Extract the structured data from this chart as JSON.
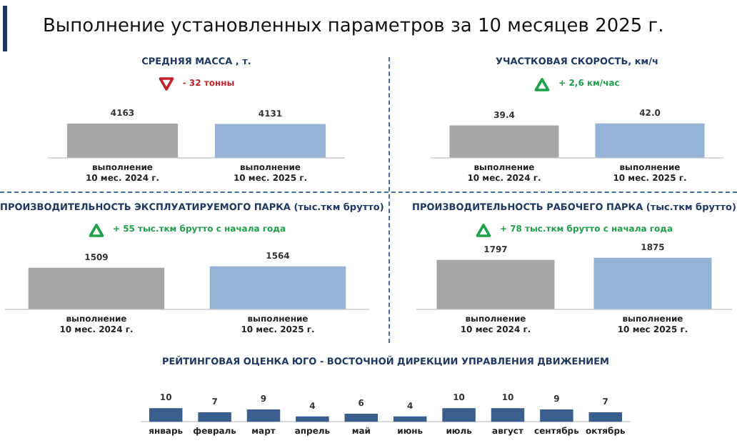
{
  "chart_data": [
    {
      "type": "other",
      "title": "Выполнение установленных параметров за 10 месяцев 2025 г."
    },
    {
      "type": "bar",
      "title": "СРЕДНЯЯ МАССА , т.",
      "annotations": [
        "- 32 тонны"
      ],
      "categories": [
        "выполнение\n10 мес. 2024 г.",
        "выполнение\n10 мес. 2025 г."
      ],
      "values": [
        4163,
        4131
      ],
      "colors": [
        "#a6a6a6",
        "#95b3d7"
      ],
      "data_labels": true
    },
    {
      "type": "bar",
      "title": "УЧАСТКОВАЯ СКОРОСТЬ, км/ч",
      "annotations": [
        "+ 2,6 км/час"
      ],
      "categories": [
        "выполнение\n10 мес. 2024 г.",
        "выполнение\n10 мес. 2025 г."
      ],
      "values": [
        39.4,
        42.0
      ],
      "colors": [
        "#a6a6a6",
        "#95b3d7"
      ],
      "value_labels": [
        "39.4",
        "42.0"
      ]
    },
    {
      "type": "bar",
      "title": "ПРОИЗВОДИТЕЛЬНОСТЬ  ЭКСПЛУАТИРУЕМОГО ПАРКА (тыс.ткм брутто)",
      "annotations": [
        "+ 55 тыс.ткм брутто  с начала года"
      ],
      "categories": [
        "выполнение\n10 мес. 2024 г.",
        "выполнение\n10 мес. 2025 г."
      ],
      "values": [
        1509,
        1564
      ],
      "colors": [
        "#a6a6a6",
        "#95b3d7"
      ],
      "data_labels": true
    },
    {
      "type": "bar",
      "title": "ПРОИЗВОДИТЕЛЬНОСТЬ  РАБОЧЕГО ПАРКА (тыс.ткм брутто)",
      "annotations": [
        "+ 78 тыс.ткм брутто  с начала года"
      ],
      "categories": [
        "выполнение\n10 мес 2024 г.",
        "выполнение\n10 мес 2025 г."
      ],
      "values": [
        1797,
        1875
      ],
      "colors": [
        "#a6a6a6",
        "#95b3d7"
      ],
      "data_labels": true
    },
    {
      "type": "bar",
      "title": "РЕЙТИНГОВАЯ ОЦЕНКА ЮГО - ВОСТОЧНОЙ ДИРЕКЦИИ УПРАВЛЕНИЯ ДВИЖЕНИЕМ",
      "categories": [
        "январь",
        "февраль",
        "март",
        "апрель",
        "май",
        "июнь",
        "июль",
        "август",
        "сентябрь",
        "октябрь"
      ],
      "values": [
        10,
        7,
        9,
        4,
        6,
        4,
        10,
        10,
        9,
        7
      ],
      "colors": [
        "#3a5f8f",
        "#3a5f8f",
        "#3a5f8f",
        "#3a5f8f",
        "#3a5f8f",
        "#3a5f8f",
        "#3a5f8f",
        "#3a5f8f",
        "#3a5f8f",
        "#3a5f8f"
      ],
      "data_labels": true
    }
  ]
}
